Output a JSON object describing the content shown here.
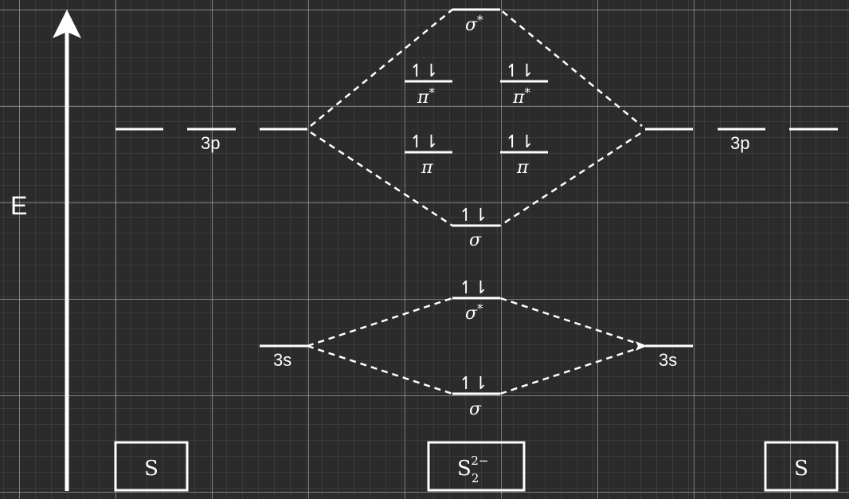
{
  "axis": {
    "label": "E"
  },
  "labels": {
    "p_left": "3p",
    "p_right": "3p",
    "s_left": "3s",
    "s_right": "3s"
  },
  "mo": {
    "sigma_star_top": {
      "symbol": "σ",
      "sup": "*"
    },
    "pi_star_left": {
      "symbol": "π",
      "sup": "*",
      "electrons": "↿⇂"
    },
    "pi_star_right": {
      "symbol": "π",
      "sup": "*",
      "electrons": "↿⇂"
    },
    "pi_left": {
      "symbol": "π",
      "electrons": "↿⇂"
    },
    "pi_right": {
      "symbol": "π",
      "electrons": "↿⇂"
    },
    "sigma_p": {
      "symbol": "σ",
      "electrons": "↿⇂"
    },
    "sigma_star_s": {
      "symbol": "σ",
      "sup": "*",
      "electrons": "↿⇂"
    },
    "sigma_s": {
      "symbol": "σ",
      "electrons": "↿⇂"
    }
  },
  "boxes": {
    "left": {
      "text": "S"
    },
    "center": {
      "base": "S",
      "sub": "2",
      "sup": "2−"
    },
    "right": {
      "text": "S"
    }
  },
  "colors": {
    "background": "#2b2b2b",
    "grid_minor": "#4a4a4a",
    "grid_major": "#d0d0d0",
    "foreground": "#ffffff"
  }
}
